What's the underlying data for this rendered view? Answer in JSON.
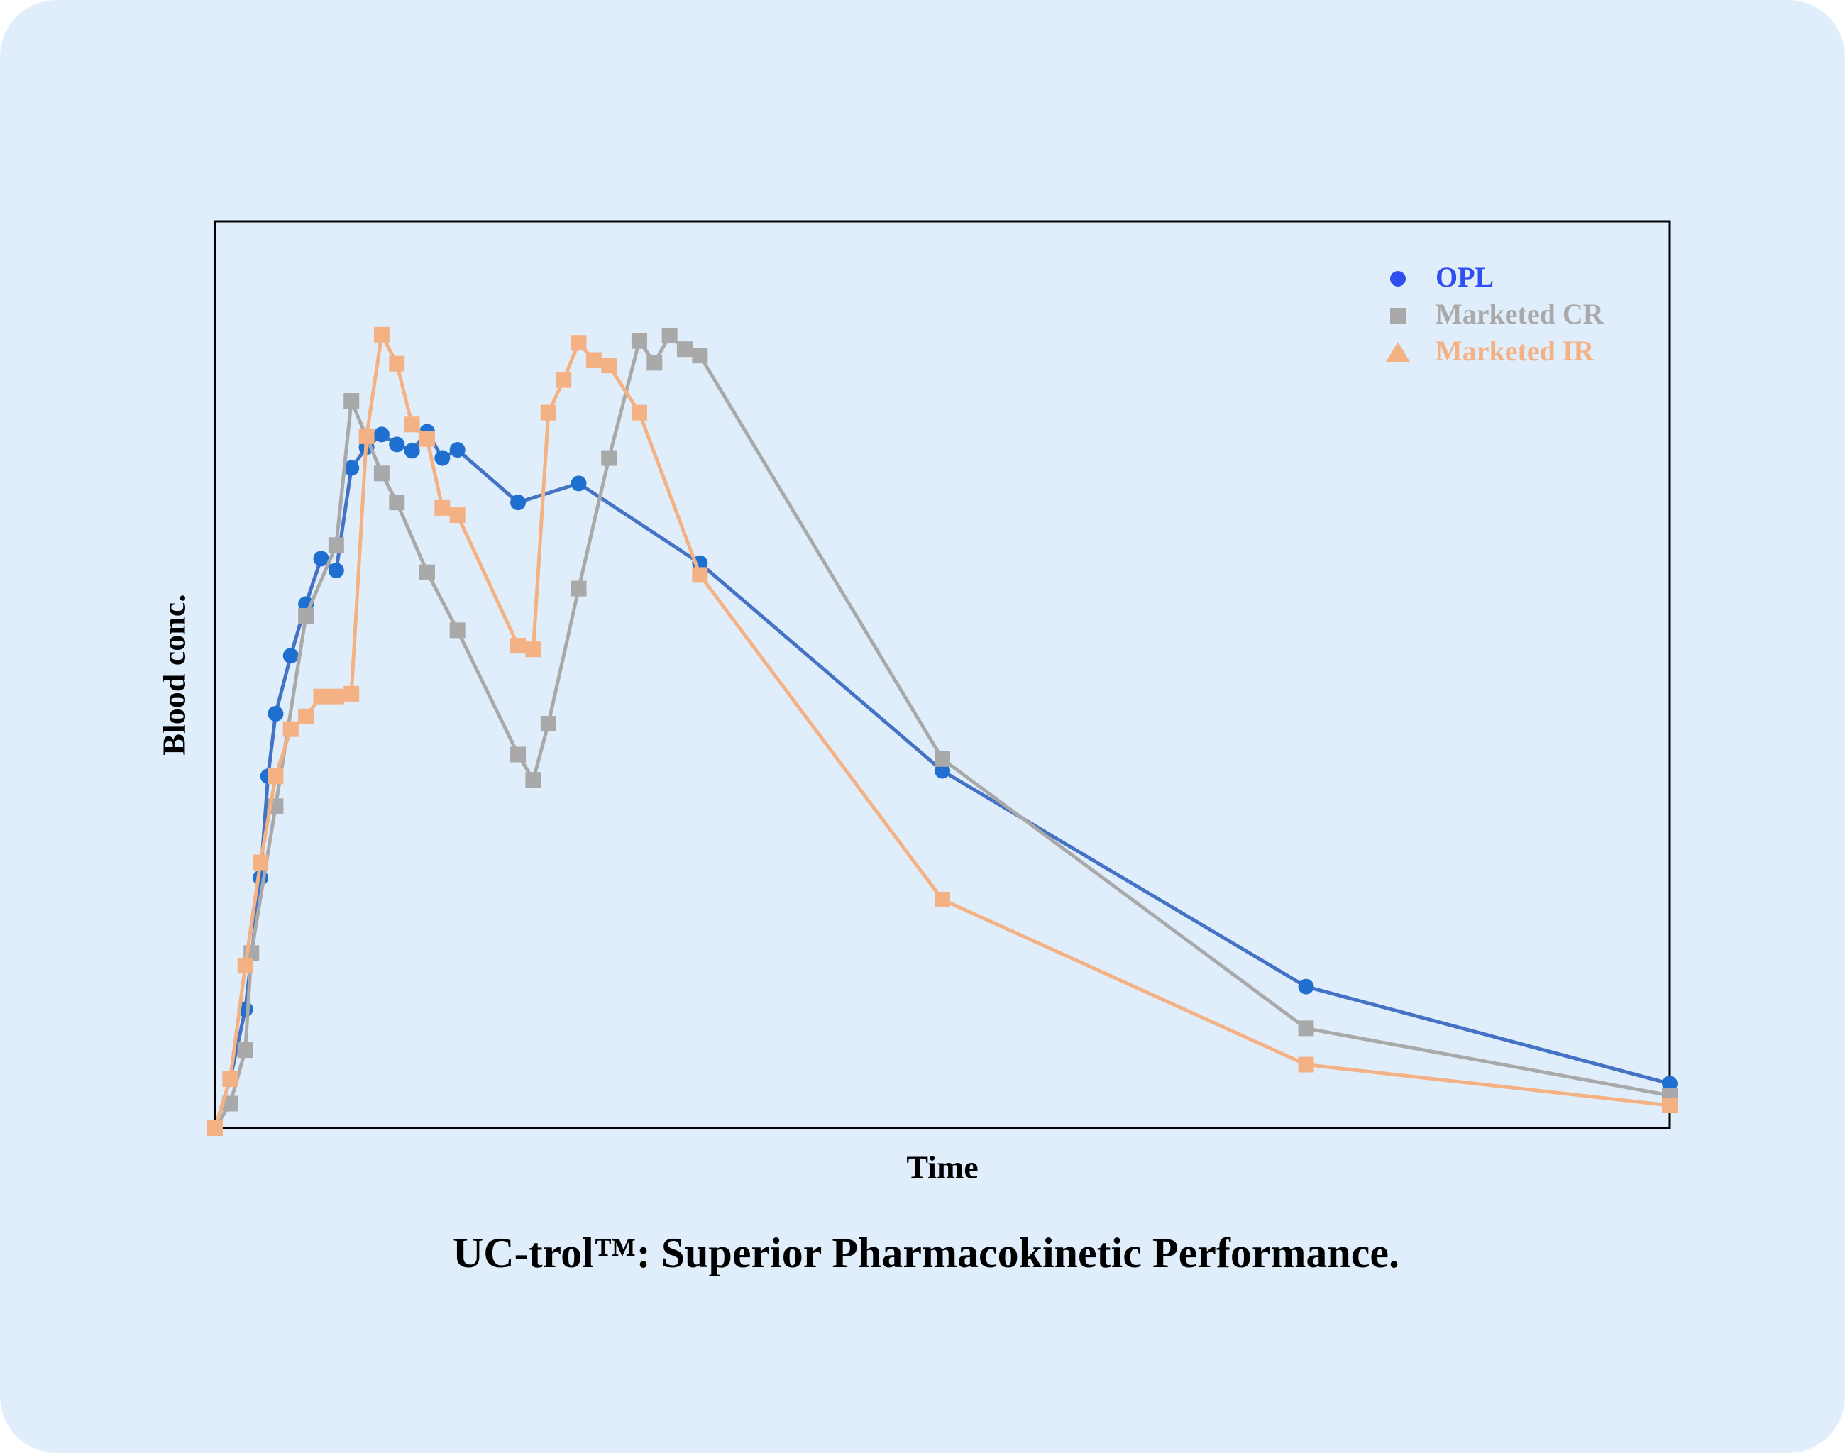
{
  "chart_data": {
    "type": "line",
    "title": "UC-trol™: Superior Pharmacokinetic Performance.",
    "x_label": "Time",
    "y_label": "Blood conc.",
    "xlim": [
      0,
      24
    ],
    "ylim": [
      0,
      100
    ],
    "legend_position": "upper right",
    "legend_markers": [
      "circle",
      "square",
      "triangle"
    ],
    "series": [
      {
        "name": "OPL",
        "color": "#4472c4",
        "marker": "circle",
        "marker_color": "#1f6fd0",
        "legend_color": "#2f4ff0",
        "x": [
          0,
          0.25,
          0.5,
          0.75,
          0.875,
          1,
          1.25,
          1.5,
          1.75,
          2,
          2.25,
          2.5,
          2.75,
          3,
          3.25,
          3.5,
          3.75,
          4,
          5,
          6,
          8,
          12,
          18,
          24
        ],
        "values": [
          0,
          5.4,
          13.1,
          27.6,
          38.8,
          45.7,
          52.1,
          57.8,
          62.8,
          61.5,
          72.8,
          75.1,
          76.5,
          75.4,
          74.7,
          76.8,
          73.9,
          74.8,
          69,
          71.1,
          62.3,
          39.4,
          15.6,
          4.9
        ]
      },
      {
        "name": "Marketed CR",
        "color": "#a9a9a9",
        "marker": "square",
        "marker_color": "#a9a9a9",
        "legend_color": "#a9a9a9",
        "x": [
          0,
          0.25,
          0.5,
          0.6,
          1,
          1.5,
          2,
          2.25,
          2.75,
          3,
          3.5,
          4,
          5,
          5.25,
          5.5,
          6,
          6.5,
          7,
          7.25,
          7.5,
          7.75,
          8,
          12,
          18,
          24
        ],
        "values": [
          0,
          2.7,
          8.6,
          19.3,
          35.5,
          56.5,
          64.3,
          80.2,
          72.2,
          69,
          61.3,
          54.9,
          41.2,
          38.4,
          44.6,
          59.5,
          73.9,
          86.8,
          84.4,
          87.4,
          85.9,
          85.2,
          40.7,
          11,
          3.6
        ]
      },
      {
        "name": "Marketed IR",
        "color": "#f4b183",
        "marker": "square",
        "marker_color": "#f4b183",
        "legend_color": "#f4b183",
        "x": [
          0,
          0.25,
          0.5,
          0.75,
          1,
          1.25,
          1.5,
          1.75,
          2,
          2.25,
          2.5,
          2.75,
          3,
          3.25,
          3.5,
          3.75,
          4,
          5,
          5.25,
          5.5,
          5.75,
          6,
          6.25,
          6.5,
          7,
          8,
          12,
          18,
          24
        ],
        "values": [
          0,
          5.4,
          17.9,
          29.3,
          38.8,
          44,
          45.4,
          47.6,
          47.6,
          47.9,
          76.3,
          87.5,
          84.3,
          77.6,
          76,
          68.4,
          67.6,
          53.2,
          52.8,
          78.9,
          82.5,
          86.6,
          84.7,
          84.1,
          78.9,
          61,
          25.2,
          7,
          2.5
        ]
      }
    ]
  }
}
